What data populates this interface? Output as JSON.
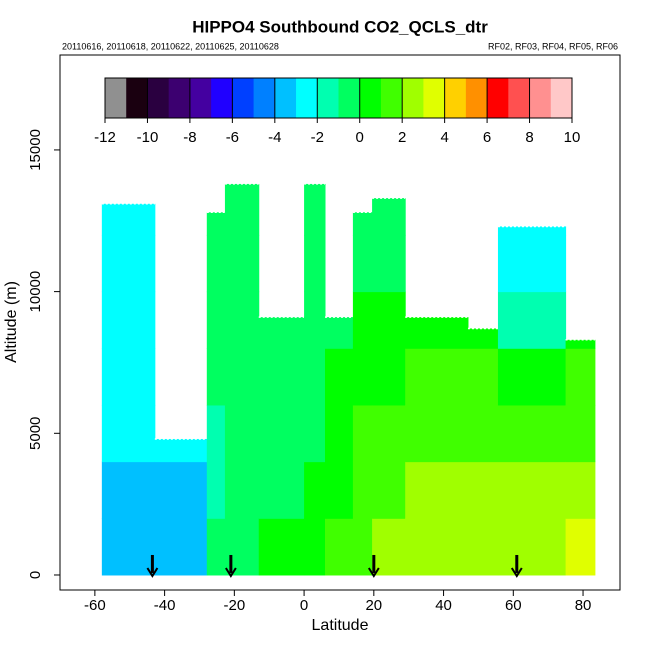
{
  "chart_data": {
    "type": "curtain",
    "title": "HIPPO4 Southbound CO2_QCLS_dtr",
    "subtitle_left": "20110616, 20110618, 20110622, 20110625, 20110628",
    "subtitle_right": "RF02, RF03, RF04, RF05, RF06",
    "x_label": "Latitude",
    "y_label": "Altitude (m)",
    "xlim": [
      -70,
      90.6
    ],
    "ylim": [
      -530,
      18350
    ],
    "xticks": [
      -60,
      -40,
      -20,
      0,
      20,
      40,
      60,
      80
    ],
    "yticks": [
      0,
      5000,
      10000,
      15000
    ],
    "x_edges": [
      -58,
      -42.8,
      -27.9,
      -22.7,
      -13,
      0,
      6,
      14,
      19.5,
      29,
      47,
      55.6,
      75,
      83.4
    ],
    "y_edges": [
      0,
      2000,
      4000,
      6000,
      8000,
      10000,
      12000,
      14000
    ],
    "column_tops": [
      13100,
      4800,
      12800,
      13800,
      9100,
      13800,
      9100,
      12800,
      13300,
      9100,
      8700,
      12300,
      8300
    ],
    "values": [
      [
        -4,
        -3.5,
        -3,
        -3,
        -2.5,
        -2.5,
        -2.5
      ],
      [
        -3.5,
        -3.5,
        -3,
        null,
        null,
        null,
        null
      ],
      [
        -1,
        -1.5,
        -1.5,
        -1,
        -1,
        -1,
        -1
      ],
      [
        -0.5,
        -1,
        -1,
        -1,
        -1,
        -1,
        -1
      ],
      [
        0,
        -0.5,
        -1,
        -1,
        -1,
        null,
        null
      ],
      [
        0.5,
        0,
        -0.5,
        -0.5,
        -1,
        -1,
        -1
      ],
      [
        1,
        0.5,
        0,
        0,
        -0.5,
        null,
        null
      ],
      [
        1.5,
        1,
        1,
        0.5,
        0,
        -1,
        -1
      ],
      [
        2,
        1.5,
        1,
        0.5,
        0,
        -0.5,
        -0.5
      ],
      [
        2.5,
        2,
        1.5,
        1.5,
        0.5,
        null,
        null
      ],
      [
        2.5,
        2,
        1.5,
        1,
        0.5,
        null,
        null
      ],
      [
        3,
        2,
        1.5,
        0,
        -1.5,
        -2.5,
        -3
      ],
      [
        3.5,
        2.5,
        1.5,
        1,
        0.5,
        null,
        null
      ]
    ],
    "arrows_x": [
      -43.5,
      -21,
      20,
      61
    ],
    "colorbar_lim": [
      -12,
      10
    ],
    "colorbar_ticks": [
      -12,
      -10,
      -8,
      -6,
      -4,
      -2,
      0,
      2,
      4,
      6,
      8,
      10
    ],
    "colorbar_colors": [
      "#909090",
      "#1a0010",
      "#2a0040",
      "#3c0070",
      "#4400a0",
      "#2000ff",
      "#0040ff",
      "#0080ff",
      "#00c0ff",
      "#00ffff",
      "#00ffb0",
      "#00ff60",
      "#00ff00",
      "#40ff00",
      "#a0ff00",
      "#e0ff00",
      "#ffd000",
      "#ff9000",
      "#ff0000",
      "#ff5050",
      "#ff9090",
      "#ffc8c8"
    ]
  }
}
